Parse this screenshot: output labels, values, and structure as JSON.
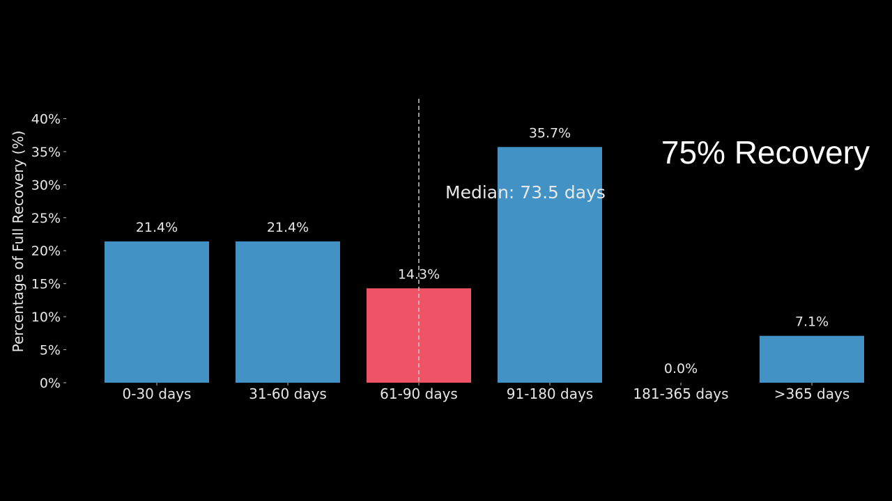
{
  "slide": {
    "title": "75% Recovery"
  },
  "chart_data": {
    "type": "bar",
    "categories": [
      "0-30 days",
      "31-60 days",
      "61-90 days",
      "91-180 days",
      "181-365 days",
      ">365 days"
    ],
    "values": [
      21.4,
      21.4,
      14.3,
      35.7,
      0.0,
      7.1
    ],
    "value_labels": [
      "21.4%",
      "21.4%",
      "14.3%",
      "35.7%",
      "0.0%",
      "7.1%"
    ],
    "ylabel": "Percentage of Full Recovery (%)",
    "xlabel": "",
    "ylim": [
      0,
      43
    ],
    "yticks": [
      0,
      5,
      10,
      15,
      20,
      25,
      30,
      35,
      40
    ],
    "ytick_labels": [
      "0%",
      "5%",
      "10%",
      "15%",
      "20%",
      "25%",
      "30%",
      "35%",
      "40%"
    ],
    "grid": false,
    "highlight_index": 2,
    "median": {
      "label": "Median: 73.5 days"
    },
    "colors": {
      "bar": "#4292c6",
      "highlight": "#ef5466",
      "text": "#e8e8e8",
      "median_line": "#cccccc",
      "background": "#000000"
    }
  }
}
